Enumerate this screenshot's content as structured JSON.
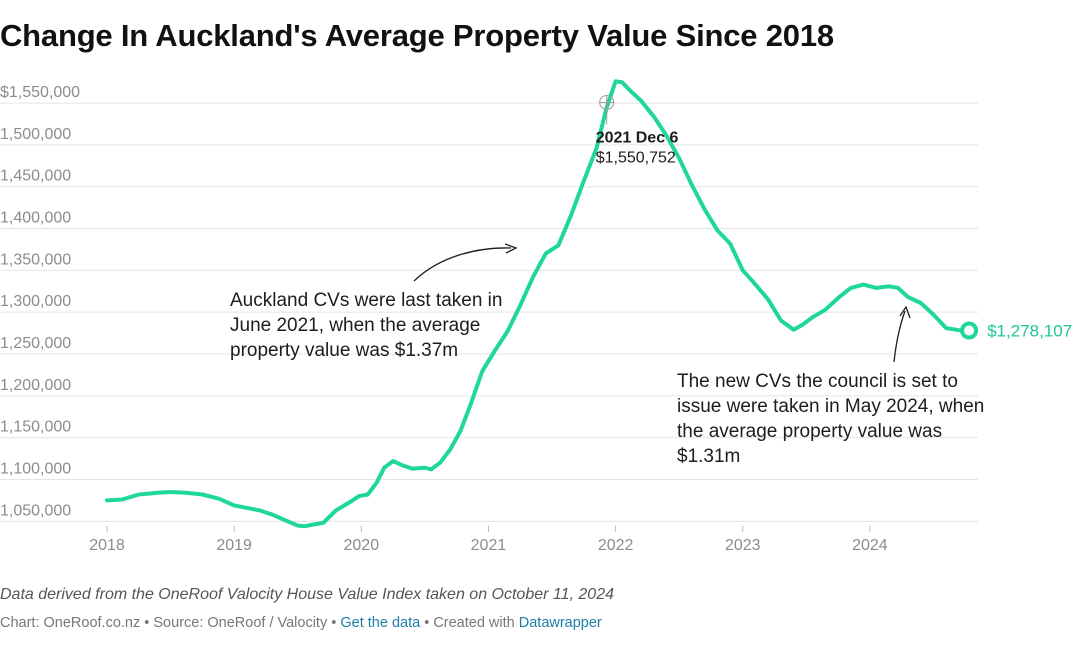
{
  "chart_data": {
    "type": "line",
    "title": "Change In Auckland's Average Property Value Since 2018",
    "xlabel": "",
    "ylabel": "",
    "xlim": [
      2018.0,
      2024.85
    ],
    "ylim": [
      1030000,
      1580000
    ],
    "x_ticks": [
      {
        "value": 2018,
        "label": "2018"
      },
      {
        "value": 2019,
        "label": "2019"
      },
      {
        "value": 2020,
        "label": "2020"
      },
      {
        "value": 2021,
        "label": "2021"
      },
      {
        "value": 2022,
        "label": "2022"
      },
      {
        "value": 2023,
        "label": "2023"
      },
      {
        "value": 2024,
        "label": "2024"
      }
    ],
    "y_ticks": [
      {
        "value": 1550000,
        "label": "$1,550,000"
      },
      {
        "value": 1500000,
        "label": "1,500,000"
      },
      {
        "value": 1450000,
        "label": "1,450,000"
      },
      {
        "value": 1400000,
        "label": "1,400,000"
      },
      {
        "value": 1350000,
        "label": "1,350,000"
      },
      {
        "value": 1300000,
        "label": "1,300,000"
      },
      {
        "value": 1250000,
        "label": "1,250,000"
      },
      {
        "value": 1200000,
        "label": "1,200,000"
      },
      {
        "value": 1150000,
        "label": "1,150,000"
      },
      {
        "value": 1100000,
        "label": "1,100,000"
      },
      {
        "value": 1050000,
        "label": "1,050,000"
      }
    ],
    "grid": true,
    "color": "#1fd69d",
    "series": [
      {
        "x": [
          2018.0,
          2018.12,
          2018.25,
          2018.4,
          2018.5,
          2018.62,
          2018.75,
          2018.88,
          2019.0,
          2019.1,
          2019.2,
          2019.3,
          2019.42,
          2019.5,
          2019.55,
          2019.62,
          2019.7,
          2019.8,
          2019.9,
          2019.98,
          2020.05,
          2020.12,
          2020.18,
          2020.25,
          2020.32,
          2020.4,
          2020.5,
          2020.55,
          2020.62,
          2020.7,
          2020.78,
          2020.86,
          2020.95,
          2021.05,
          2021.15,
          2021.25,
          2021.35,
          2021.45,
          2021.55,
          2021.65,
          2021.75,
          2021.85,
          2021.93,
          2022.0,
          2022.05,
          2022.12,
          2022.2,
          2022.3,
          2022.4,
          2022.5,
          2022.6,
          2022.7,
          2022.8,
          2022.9,
          2023.0,
          2023.1,
          2023.2,
          2023.3,
          2023.4,
          2023.47,
          2023.55,
          2023.65,
          2023.75,
          2023.85,
          2023.95,
          2024.05,
          2024.15,
          2024.22,
          2024.3,
          2024.4,
          2024.5,
          2024.6,
          2024.7,
          2024.78
        ],
        "y": [
          1075000,
          1076000,
          1082000,
          1084000,
          1085000,
          1084000,
          1082000,
          1077000,
          1069000,
          1066000,
          1063000,
          1058000,
          1050000,
          1045000,
          1044000,
          1046000,
          1048000,
          1063000,
          1072000,
          1080000,
          1082000,
          1096000,
          1114000,
          1122000,
          1117000,
          1113000,
          1114000,
          1112000,
          1120000,
          1136000,
          1158000,
          1190000,
          1229000,
          1254000,
          1277000,
          1308000,
          1342000,
          1370000,
          1380000,
          1416000,
          1457000,
          1496000,
          1545000,
          1576000,
          1575000,
          1564000,
          1553000,
          1534000,
          1511000,
          1484000,
          1452000,
          1423000,
          1398000,
          1382000,
          1350000,
          1333000,
          1315000,
          1290000,
          1279000,
          1285000,
          1294000,
          1303000,
          1317000,
          1329000,
          1333000,
          1329000,
          1331000,
          1329000,
          1318000,
          1311000,
          1297000,
          1281000,
          1278500,
          1278107
        ]
      }
    ],
    "highlight": {
      "x": 2021.93,
      "y": 1550752,
      "date": "2021 Dec 6",
      "value": "$1,550,752"
    },
    "end_point": {
      "x": 2024.78,
      "y": 1278107,
      "label": "$1,278,107"
    },
    "annotations": [
      {
        "lines": [
          "Auckland CVs were last taken in",
          "June 2021, when the average",
          "property value was $1.37m"
        ]
      },
      {
        "lines": [
          "The new CVs the council is set to",
          "issue were taken in May 2024, when",
          "the average property value was",
          "$1.31m"
        ]
      }
    ]
  },
  "note": "Data derived from the OneRoof Valocity House Value Index taken on October 11, 2024",
  "footer": {
    "chart_credit": "Chart: OneRoof.co.nz",
    "sep1": " • ",
    "source": "Source: OneRoof / Valocity",
    "sep2": " • ",
    "get_data": "Get the data",
    "sep3": " • ",
    "created_with": "Created with ",
    "tool": "Datawrapper"
  }
}
